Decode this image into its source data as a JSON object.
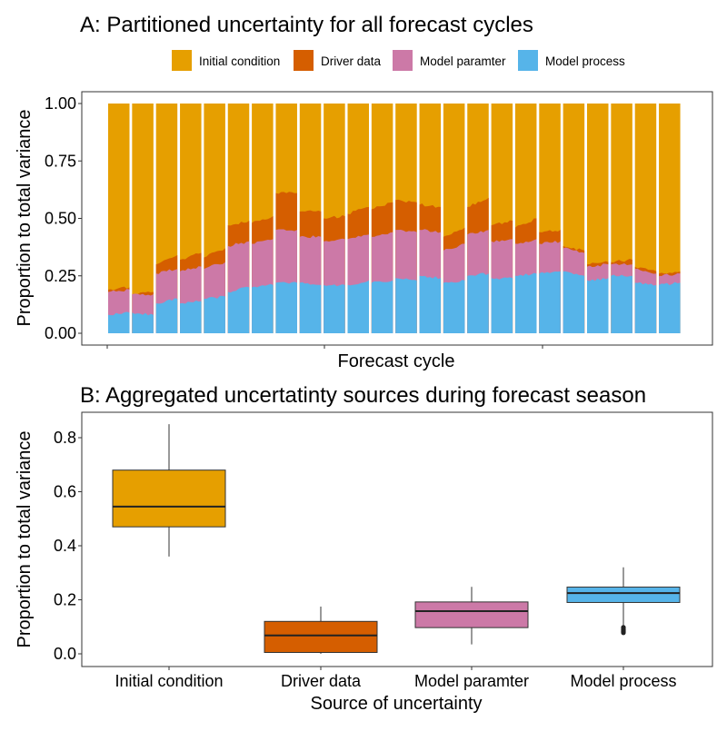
{
  "chart_data": [
    {
      "type": "area",
      "subtype": "stacked-100-percent",
      "title": "A: Partitioned uncertainty for all forecast cycles",
      "xlabel": "Forecast cycle",
      "ylabel": "Proportion to total variance",
      "ylim": [
        0,
        1
      ],
      "yticks": [
        "0.00",
        "0.25",
        "0.50",
        "0.75",
        "1.00"
      ],
      "legend_position": "top",
      "grid": false,
      "stack_order": [
        "Model process",
        "Model paramter",
        "Driver data",
        "Initial condition"
      ],
      "legend": [
        "Initial condition",
        "Driver data",
        "Model paramter",
        "Model process"
      ],
      "colors": {
        "Initial condition": "#E69F00",
        "Driver data": "#D55E00",
        "Model paramter": "#CC79A7",
        "Model process": "#56B4E9"
      },
      "cycles": [
        {
          "cycle": 1,
          "model_process": [
            0.08,
            0.09
          ],
          "model_paramter": [
            0.1,
            0.1
          ],
          "driver_data": [
            0.01,
            0.01
          ]
        },
        {
          "cycle": 2,
          "model_process": [
            0.09,
            0.08
          ],
          "model_paramter": [
            0.08,
            0.09
          ],
          "driver_data": [
            0.0,
            0.01
          ]
        },
        {
          "cycle": 3,
          "model_process": [
            0.13,
            0.15
          ],
          "model_paramter": [
            0.13,
            0.13
          ],
          "driver_data": [
            0.04,
            0.06
          ]
        },
        {
          "cycle": 4,
          "model_process": [
            0.13,
            0.14
          ],
          "model_paramter": [
            0.14,
            0.15
          ],
          "driver_data": [
            0.05,
            0.06
          ]
        },
        {
          "cycle": 5,
          "model_process": [
            0.15,
            0.16
          ],
          "model_paramter": [
            0.13,
            0.15
          ],
          "driver_data": [
            0.05,
            0.06
          ]
        },
        {
          "cycle": 6,
          "model_process": [
            0.18,
            0.2
          ],
          "model_paramter": [
            0.2,
            0.2
          ],
          "driver_data": [
            0.09,
            0.09
          ]
        },
        {
          "cycle": 7,
          "model_process": [
            0.2,
            0.21
          ],
          "model_paramter": [
            0.19,
            0.2
          ],
          "driver_data": [
            0.09,
            0.1
          ]
        },
        {
          "cycle": 8,
          "model_process": [
            0.22,
            0.22
          ],
          "model_paramter": [
            0.23,
            0.23
          ],
          "driver_data": [
            0.16,
            0.16
          ]
        },
        {
          "cycle": 9,
          "model_process": [
            0.22,
            0.21
          ],
          "model_paramter": [
            0.2,
            0.21
          ],
          "driver_data": [
            0.11,
            0.11
          ]
        },
        {
          "cycle": 10,
          "model_process": [
            0.21,
            0.21
          ],
          "model_paramter": [
            0.19,
            0.2
          ],
          "driver_data": [
            0.1,
            0.1
          ]
        },
        {
          "cycle": 11,
          "model_process": [
            0.21,
            0.23
          ],
          "model_paramter": [
            0.2,
            0.2
          ],
          "driver_data": [
            0.11,
            0.12
          ]
        },
        {
          "cycle": 12,
          "model_process": [
            0.22,
            0.23
          ],
          "model_paramter": [
            0.2,
            0.21
          ],
          "driver_data": [
            0.12,
            0.13
          ]
        },
        {
          "cycle": 13,
          "model_process": [
            0.24,
            0.23
          ],
          "model_paramter": [
            0.21,
            0.21
          ],
          "driver_data": [
            0.13,
            0.13
          ]
        },
        {
          "cycle": 14,
          "model_process": [
            0.25,
            0.24
          ],
          "model_paramter": [
            0.2,
            0.2
          ],
          "driver_data": [
            0.11,
            0.11
          ]
        },
        {
          "cycle": 15,
          "model_process": [
            0.22,
            0.23
          ],
          "model_paramter": [
            0.14,
            0.16
          ],
          "driver_data": [
            0.06,
            0.07
          ]
        },
        {
          "cycle": 16,
          "model_process": [
            0.25,
            0.26
          ],
          "model_paramter": [
            0.18,
            0.19
          ],
          "driver_data": [
            0.12,
            0.14
          ]
        },
        {
          "cycle": 17,
          "model_process": [
            0.24,
            0.24
          ],
          "model_paramter": [
            0.16,
            0.17
          ],
          "driver_data": [
            0.07,
            0.08
          ]
        },
        {
          "cycle": 18,
          "model_process": [
            0.25,
            0.26
          ],
          "model_paramter": [
            0.14,
            0.15
          ],
          "driver_data": [
            0.07,
            0.09
          ]
        },
        {
          "cycle": 19,
          "model_process": [
            0.26,
            0.27
          ],
          "model_paramter": [
            0.13,
            0.13
          ],
          "driver_data": [
            0.05,
            0.05
          ]
        },
        {
          "cycle": 20,
          "model_process": [
            0.27,
            0.25
          ],
          "model_paramter": [
            0.1,
            0.1
          ],
          "driver_data": [
            0.01,
            0.01
          ]
        },
        {
          "cycle": 21,
          "model_process": [
            0.23,
            0.24
          ],
          "model_paramter": [
            0.06,
            0.06
          ],
          "driver_data": [
            0.01,
            0.01
          ]
        },
        {
          "cycle": 22,
          "model_process": [
            0.25,
            0.25
          ],
          "model_paramter": [
            0.05,
            0.05
          ],
          "driver_data": [
            0.01,
            0.02
          ]
        },
        {
          "cycle": 23,
          "model_process": [
            0.22,
            0.21
          ],
          "model_paramter": [
            0.06,
            0.05
          ],
          "driver_data": [
            0.01,
            0.01
          ]
        },
        {
          "cycle": 24,
          "model_process": [
            0.21,
            0.22
          ],
          "model_paramter": [
            0.04,
            0.04
          ],
          "driver_data": [
            0.01,
            0.01
          ]
        }
      ]
    },
    {
      "type": "box",
      "title": "B: Aggregated uncertatinty sources during forecast season",
      "xlabel": "Source of uncertainty",
      "ylabel": "Proportion to total variance",
      "ylim": [
        -0.03,
        0.89
      ],
      "yticks": [
        "0.0",
        "0.2",
        "0.4",
        "0.6",
        "0.8"
      ],
      "grid": false,
      "categories": [
        "Initial condition",
        "Driver data",
        "Model paramter",
        "Model process"
      ],
      "boxes": [
        {
          "name": "Initial condition",
          "color": "#E69F00",
          "whisker_low": 0.36,
          "q1": 0.47,
          "median": 0.545,
          "q3": 0.68,
          "whisker_high": 0.85,
          "outliers": []
        },
        {
          "name": "Driver data",
          "color": "#D55E00",
          "whisker_low": 0.0,
          "q1": 0.005,
          "median": 0.068,
          "q3": 0.12,
          "whisker_high": 0.175,
          "outliers": []
        },
        {
          "name": "Model paramter",
          "color": "#CC79A7",
          "whisker_low": 0.035,
          "q1": 0.097,
          "median": 0.158,
          "q3": 0.192,
          "whisker_high": 0.248,
          "outliers": []
        },
        {
          "name": "Model process",
          "color": "#56B4E9",
          "whisker_low": 0.105,
          "q1": 0.19,
          "median": 0.225,
          "q3": 0.247,
          "whisker_high": 0.32,
          "outliers": [
            0.078,
            0.082,
            0.086,
            0.09,
            0.094,
            0.098
          ]
        }
      ]
    }
  ]
}
